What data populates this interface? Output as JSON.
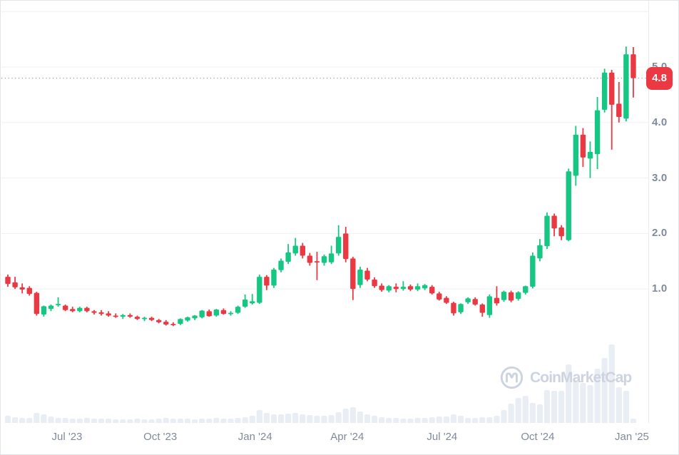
{
  "chart_data": {
    "type": "candlestick",
    "title": "",
    "y_axis": {
      "ticks": [
        1.0,
        2.0,
        3.0,
        4.0,
        5.0
      ],
      "tick_labels": [
        "1.0",
        "2.0",
        "3.0",
        "4.0",
        "5.0"
      ],
      "gridlines": [
        1,
        2,
        3,
        4,
        5,
        6
      ],
      "range": [
        0,
        6.2
      ]
    },
    "x_axis": {
      "labels": [
        "Jul '23",
        "Oct '23",
        "Jan '24",
        "Apr '24",
        "Jul '24",
        "Oct '24",
        "Jan '25"
      ],
      "positions": [
        8.23,
        21.2,
        34.4,
        47.2,
        60.4,
        73.7,
        86.8
      ]
    },
    "current_price": 4.8,
    "candles_ohlc": [
      [
        1.22,
        1.26,
        1.04,
        1.09
      ],
      [
        1.12,
        1.22,
        1.0,
        1.03
      ],
      [
        1.03,
        1.1,
        0.92,
        0.99
      ],
      [
        1.02,
        1.05,
        0.88,
        0.91
      ],
      [
        0.93,
        0.95,
        0.52,
        0.55
      ],
      [
        0.54,
        0.7,
        0.5,
        0.69
      ],
      [
        0.64,
        0.72,
        0.6,
        0.7
      ],
      [
        0.71,
        0.85,
        0.68,
        0.73
      ],
      [
        0.7,
        0.72,
        0.6,
        0.62
      ],
      [
        0.64,
        0.68,
        0.58,
        0.6
      ],
      [
        0.6,
        0.68,
        0.58,
        0.66
      ],
      [
        0.66,
        0.68,
        0.58,
        0.6
      ],
      [
        0.6,
        0.62,
        0.54,
        0.57
      ],
      [
        0.58,
        0.62,
        0.52,
        0.55
      ],
      [
        0.56,
        0.6,
        0.5,
        0.52
      ],
      [
        0.52,
        0.56,
        0.48,
        0.5
      ],
      [
        0.5,
        0.55,
        0.46,
        0.53
      ],
      [
        0.53,
        0.56,
        0.48,
        0.5
      ],
      [
        0.5,
        0.52,
        0.44,
        0.46
      ],
      [
        0.46,
        0.5,
        0.42,
        0.48
      ],
      [
        0.48,
        0.5,
        0.42,
        0.44
      ],
      [
        0.44,
        0.46,
        0.38,
        0.4
      ],
      [
        0.41,
        0.44,
        0.34,
        0.36
      ],
      [
        0.37,
        0.4,
        0.33,
        0.35
      ],
      [
        0.37,
        0.47,
        0.35,
        0.46
      ],
      [
        0.43,
        0.5,
        0.41,
        0.49
      ],
      [
        0.47,
        0.53,
        0.44,
        0.52
      ],
      [
        0.49,
        0.62,
        0.47,
        0.61
      ],
      [
        0.6,
        0.63,
        0.5,
        0.51
      ],
      [
        0.52,
        0.64,
        0.5,
        0.63
      ],
      [
        0.62,
        0.65,
        0.54,
        0.55
      ],
      [
        0.55,
        0.6,
        0.52,
        0.57
      ],
      [
        0.57,
        0.7,
        0.55,
        0.68
      ],
      [
        0.68,
        0.9,
        0.66,
        0.81
      ],
      [
        0.74,
        0.91,
        0.72,
        0.78
      ],
      [
        0.75,
        1.26,
        0.73,
        1.22
      ],
      [
        1.22,
        1.25,
        0.98,
        1.06
      ],
      [
        1.06,
        1.38,
        1.02,
        1.35
      ],
      [
        1.34,
        1.55,
        1.3,
        1.51
      ],
      [
        1.49,
        1.81,
        1.45,
        1.66
      ],
      [
        1.64,
        1.92,
        1.6,
        1.78
      ],
      [
        1.78,
        1.83,
        1.55,
        1.6
      ],
      [
        1.6,
        1.65,
        1.42,
        1.47
      ],
      [
        1.5,
        1.67,
        1.16,
        1.48
      ],
      [
        1.47,
        1.62,
        1.42,
        1.59
      ],
      [
        1.48,
        1.78,
        1.45,
        1.64
      ],
      [
        1.64,
        2.15,
        1.6,
        1.94
      ],
      [
        2.0,
        2.12,
        1.48,
        1.54
      ],
      [
        1.55,
        1.58,
        0.8,
        1.0
      ],
      [
        1.07,
        1.4,
        1.02,
        1.35
      ],
      [
        1.33,
        1.38,
        1.14,
        1.17
      ],
      [
        1.17,
        1.21,
        1.02,
        1.05
      ],
      [
        1.06,
        1.1,
        0.95,
        0.98
      ],
      [
        0.97,
        1.07,
        0.94,
        1.05
      ],
      [
        1.04,
        1.1,
        0.94,
        1.0
      ],
      [
        1.0,
        1.14,
        0.97,
        1.04
      ],
      [
        1.05,
        1.08,
        0.96,
        0.99
      ],
      [
        0.99,
        1.1,
        0.96,
        1.05
      ],
      [
        1.01,
        1.09,
        0.98,
        1.07
      ],
      [
        1.04,
        1.07,
        0.9,
        0.92
      ],
      [
        0.92,
        0.95,
        0.79,
        0.81
      ],
      [
        0.84,
        0.87,
        0.73,
        0.75
      ],
      [
        0.75,
        0.77,
        0.52,
        0.56
      ],
      [
        0.58,
        0.74,
        0.55,
        0.73
      ],
      [
        0.76,
        0.85,
        0.73,
        0.83
      ],
      [
        0.82,
        0.85,
        0.7,
        0.72
      ],
      [
        0.72,
        0.74,
        0.5,
        0.57
      ],
      [
        0.53,
        0.9,
        0.48,
        0.87
      ],
      [
        0.84,
        1.05,
        0.7,
        0.74
      ],
      [
        0.8,
        0.97,
        0.77,
        0.95
      ],
      [
        0.94,
        0.97,
        0.76,
        0.79
      ],
      [
        0.82,
        0.96,
        0.79,
        0.94
      ],
      [
        0.93,
        1.06,
        0.9,
        1.05
      ],
      [
        1.04,
        1.66,
        1.01,
        1.6
      ],
      [
        1.55,
        1.9,
        1.5,
        1.79
      ],
      [
        1.77,
        2.38,
        1.72,
        2.32
      ],
      [
        2.32,
        2.36,
        1.95,
        2.09
      ],
      [
        2.11,
        2.15,
        1.88,
        1.95
      ],
      [
        1.88,
        3.17,
        1.86,
        3.12
      ],
      [
        3.04,
        3.94,
        2.86,
        3.78
      ],
      [
        3.78,
        3.9,
        3.2,
        3.37
      ],
      [
        3.35,
        3.66,
        3.0,
        3.47
      ],
      [
        3.43,
        4.46,
        3.16,
        4.22
      ],
      [
        4.23,
        4.97,
        4.18,
        4.9
      ],
      [
        4.9,
        4.95,
        3.51,
        4.32
      ],
      [
        4.34,
        4.73,
        4.0,
        4.1
      ],
      [
        4.07,
        5.37,
        4.02,
        5.23
      ],
      [
        5.23,
        5.36,
        4.45,
        4.8
      ]
    ],
    "volume_relative": [
      10,
      8,
      7,
      7,
      14,
      12,
      9,
      7,
      7,
      6,
      6,
      7,
      6,
      6,
      6,
      5,
      5,
      5,
      6,
      5,
      5,
      6,
      7,
      6,
      6,
      6,
      5,
      6,
      6,
      7,
      6,
      6,
      7,
      8,
      10,
      18,
      14,
      12,
      12,
      13,
      14,
      12,
      11,
      10,
      10,
      11,
      15,
      20,
      22,
      16,
      12,
      10,
      8,
      7,
      7,
      6,
      6,
      7,
      7,
      8,
      9,
      9,
      12,
      10,
      7,
      7,
      8,
      8,
      10,
      18,
      27,
      35,
      38,
      28,
      26,
      46,
      45,
      45,
      82,
      58,
      56,
      53,
      76,
      91,
      110,
      50,
      45,
      6
    ],
    "colors": {
      "up": "#16c784",
      "down": "#ea3943",
      "grid": "#eef1f4",
      "axis_text": "#808a9d",
      "volume_bar": "#e9edf4",
      "price_badge": "#ea3943",
      "watermark": "#cdd3e1",
      "dotted_line": "#9aa3b0",
      "border": "#e2e5e9"
    }
  },
  "price_line": {
    "label": "4.8",
    "value": 4.8
  },
  "watermark": {
    "text": "CoinMarketCap"
  }
}
